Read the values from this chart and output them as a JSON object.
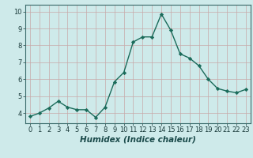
{
  "x": [
    0,
    1,
    2,
    3,
    4,
    5,
    6,
    7,
    8,
    9,
    10,
    11,
    12,
    13,
    14,
    15,
    16,
    17,
    18,
    19,
    20,
    21,
    22,
    23
  ],
  "y": [
    3.8,
    4.0,
    4.3,
    4.7,
    4.35,
    4.2,
    4.2,
    3.75,
    4.35,
    5.85,
    6.4,
    8.2,
    8.5,
    8.5,
    9.85,
    8.9,
    7.5,
    7.25,
    6.8,
    6.0,
    5.45,
    5.3,
    5.2,
    5.4
  ],
  "line_color": "#1a6b5a",
  "marker": "D",
  "marker_size": 2.2,
  "background_color": "#ceeaea",
  "grid_color": "#c8a8a8",
  "xlabel": "Humidex (Indice chaleur)",
  "xlabel_fontsize": 7.5,
  "ylim": [
    3.4,
    10.4
  ],
  "xlim": [
    -0.5,
    23.5
  ],
  "yticks": [
    4,
    5,
    6,
    7,
    8,
    9,
    10
  ],
  "xticks": [
    0,
    1,
    2,
    3,
    4,
    5,
    6,
    7,
    8,
    9,
    10,
    11,
    12,
    13,
    14,
    15,
    16,
    17,
    18,
    19,
    20,
    21,
    22,
    23
  ],
  "tick_fontsize": 6.0,
  "line_width": 1.0
}
